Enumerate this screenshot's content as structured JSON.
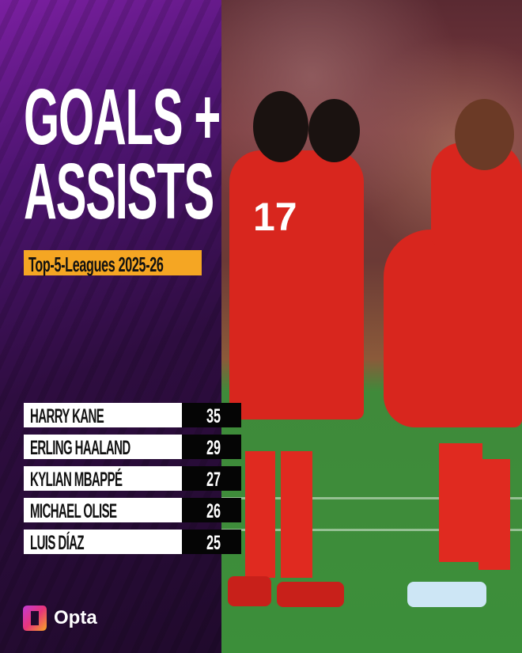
{
  "title_line1": "GOALS +",
  "title_line2": "ASSISTS",
  "subtitle": "Top-5-Leagues 2025-26",
  "ranking": [
    {
      "player": "HARRY KANE",
      "value": "35"
    },
    {
      "player": "ERLING HAALAND",
      "value": "29"
    },
    {
      "player": "KYLIAN MBAPPÉ",
      "value": "27"
    },
    {
      "player": "MICHAEL OLISE",
      "value": "26"
    },
    {
      "player": "LUIS DÍAZ",
      "value": "25"
    }
  ],
  "brand": "Opta",
  "colors": {
    "accent": "#f5a623",
    "panel": "#4d1470",
    "kit": "#d8261e"
  },
  "photo": {
    "jersey_number": "17"
  }
}
